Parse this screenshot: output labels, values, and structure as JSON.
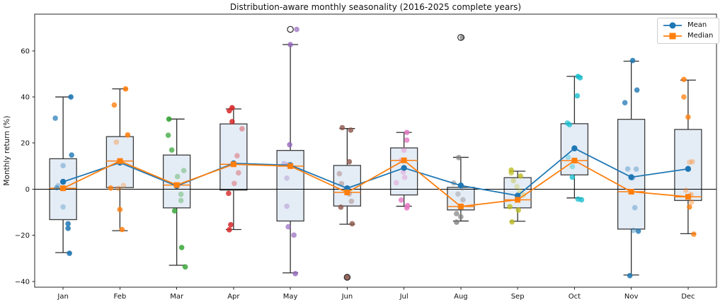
{
  "figure": {
    "title": "Distribution-aware monthly seasonality (2016-2025 complete years)",
    "ylabel": "Monthly return (%)"
  },
  "chart_data": {
    "type": "box+line+scatter",
    "title": "Distribution-aware monthly seasonality (2016-2025 complete years)",
    "xlabel": "",
    "ylabel": "Monthly return (%)",
    "categories": [
      "Jan",
      "Feb",
      "Mar",
      "Apr",
      "May",
      "Jun",
      "Jul",
      "Aug",
      "Sep",
      "Oct",
      "Nov",
      "Dec"
    ],
    "ylim": [
      -42.5,
      75.9
    ],
    "yticks": [
      -40,
      -20,
      0,
      20,
      40,
      60
    ],
    "grid": false,
    "zero_line": 0,
    "legend_position": "upper right",
    "style": {
      "box_fill": "#e4ecf6",
      "box_edge": "#3c3c3c",
      "whisker_color": "#2f2f2f",
      "box_median_color": "#ff7f0e",
      "axis_color": "#262626",
      "zero_line_color": "#000000",
      "flier_edge": "#2b2b2b"
    },
    "boxes": [
      {
        "label": "Jan",
        "whislo": -27.5,
        "q1": -13.2,
        "med": 0.4,
        "q3": 13.2,
        "whishi": 40.0,
        "fliers": []
      },
      {
        "label": "Feb",
        "whislo": -18.0,
        "q1": 0.7,
        "med": 12.2,
        "q3": 22.8,
        "whishi": 43.5,
        "fliers": []
      },
      {
        "label": "Mar",
        "whislo": -33.0,
        "q1": -8.1,
        "med": 1.8,
        "q3": 14.8,
        "whishi": 30.4,
        "fliers": []
      },
      {
        "label": "Apr",
        "whislo": -17.5,
        "q1": -0.4,
        "med": 10.8,
        "q3": 28.3,
        "whishi": 34.8,
        "fliers": []
      },
      {
        "label": "May",
        "whislo": -36.3,
        "q1": -13.8,
        "med": 10.0,
        "q3": 16.8,
        "whishi": 62.7,
        "fliers": [
          69.3
        ]
      },
      {
        "label": "Jun",
        "whislo": -15.2,
        "q1": -7.3,
        "med": -1.4,
        "q3": 10.3,
        "whishi": 26.3,
        "fliers": [
          -38.2
        ]
      },
      {
        "label": "Jul",
        "whislo": -7.4,
        "q1": -2.5,
        "med": 12.5,
        "q3": 17.9,
        "whishi": 24.6,
        "fliers": []
      },
      {
        "label": "Aug",
        "whislo": -13.8,
        "q1": -9.0,
        "med": -7.5,
        "q3": 0.8,
        "whishi": 13.8,
        "fliers": [
          65.8
        ]
      },
      {
        "label": "Sep",
        "whislo": -13.9,
        "q1": -8.1,
        "med": -4.6,
        "q3": 5.0,
        "whishi": 7.8,
        "fliers": []
      },
      {
        "label": "Oct",
        "whislo": -3.8,
        "q1": 6.2,
        "med": 12.4,
        "q3": 28.4,
        "whishi": 48.9,
        "fliers": []
      },
      {
        "label": "Nov",
        "whislo": -37.2,
        "q1": -17.3,
        "med": -1.1,
        "q3": 30.3,
        "whishi": 55.5,
        "fliers": []
      },
      {
        "label": "Dec",
        "whislo": -19.3,
        "q1": -4.9,
        "med": -3.3,
        "q3": 25.9,
        "whishi": 47.3,
        "fliers": []
      }
    ],
    "series": [
      {
        "name": "Mean",
        "color": "#1f77b4",
        "marker": "circle",
        "values": [
          3.2,
          11.5,
          1.4,
          11.2,
          10.4,
          0.4,
          9.2,
          1.6,
          -2.8,
          17.7,
          5.2,
          8.8
        ]
      },
      {
        "name": "Median",
        "color": "#ff7f0e",
        "marker": "square",
        "values": [
          0.4,
          12.2,
          1.8,
          10.8,
          10.0,
          -1.4,
          12.5,
          -7.5,
          -4.6,
          12.4,
          -1.1,
          -3.3
        ]
      }
    ],
    "scatter": [
      {
        "month": "Jan",
        "color": "#1f77b4",
        "points": [
          [
            40,
            11,
            0.9
          ],
          [
            30.8,
            -11,
            0.7
          ],
          [
            14.8,
            12,
            0.8
          ],
          [
            10.2,
            0,
            0.35
          ],
          [
            1.5,
            -7,
            0.3
          ],
          [
            0.6,
            -9,
            0.5
          ],
          [
            -7.7,
            0,
            0.3
          ],
          [
            -15,
            7,
            0.85
          ],
          [
            -17,
            7,
            0.85
          ],
          [
            -27.8,
            9,
            0.9
          ]
        ]
      },
      {
        "month": "Feb",
        "color": "#ff7f0e",
        "points": [
          [
            43.5,
            8,
            0.9
          ],
          [
            36.5,
            -8,
            0.8
          ],
          [
            23.5,
            11,
            0.9
          ],
          [
            20.4,
            -5,
            0.35
          ],
          [
            12.3,
            1,
            0.8
          ],
          [
            1.6,
            5,
            0.3
          ],
          [
            0.5,
            -13,
            0.8
          ],
          [
            0.3,
            -2,
            0.4
          ],
          [
            -8.8,
            0,
            0.85
          ],
          [
            -17.5,
            3,
            0.85
          ]
        ]
      },
      {
        "month": "Mar",
        "color": "#2ca02c",
        "points": [
          [
            30.4,
            -11,
            0.85
          ],
          [
            23.4,
            -12,
            0.7
          ],
          [
            17,
            -7,
            0.7
          ],
          [
            8.1,
            10,
            0.35
          ],
          [
            5.5,
            1,
            0.35
          ],
          [
            -2.2,
            6,
            0.35
          ],
          [
            -4.9,
            6,
            0.35
          ],
          [
            -9.4,
            -3,
            0.8
          ],
          [
            -25.3,
            7,
            0.8
          ],
          [
            -33.7,
            12,
            0.8
          ]
        ]
      },
      {
        "month": "Apr",
        "color": "#d62728",
        "points": [
          [
            35.3,
            -2,
            0.9
          ],
          [
            34,
            -6,
            0.85
          ],
          [
            29.3,
            -2,
            0.85
          ],
          [
            26.2,
            12,
            0.4
          ],
          [
            14.5,
            5,
            0.35
          ],
          [
            7.1,
            7,
            0.35
          ],
          [
            2.5,
            1,
            0.35
          ],
          [
            -1.8,
            -7,
            0.8
          ],
          [
            -15.4,
            -4,
            0.85
          ],
          [
            -17.6,
            -6,
            0.85
          ]
        ]
      },
      {
        "month": "May",
        "color": "#9467bd",
        "points": [
          [
            69.3,
            9,
            0.7
          ],
          [
            62.7,
            0,
            0.8
          ],
          [
            19.3,
            -1,
            0.8
          ],
          [
            11,
            -9,
            0.35
          ],
          [
            10.6,
            -3,
            0.35
          ],
          [
            4.8,
            -5,
            0.3
          ],
          [
            -7.4,
            -5,
            0.35
          ],
          [
            -16.3,
            -3,
            0.7
          ],
          [
            -19.9,
            5,
            0.7
          ],
          [
            -36.6,
            7,
            0.8
          ]
        ]
      },
      {
        "month": "Jun",
        "color": "#8c564b",
        "points": [
          [
            26.7,
            -7,
            0.8
          ],
          [
            25.6,
            5,
            0.8
          ],
          [
            11.9,
            3,
            0.8
          ],
          [
            6.7,
            -11,
            0.35
          ],
          [
            2.4,
            -8,
            0.35
          ],
          [
            -2.1,
            3,
            0.3
          ],
          [
            -5.2,
            6,
            0.35
          ],
          [
            -7.8,
            -9,
            0.8
          ],
          [
            -15,
            7,
            0.8
          ],
          [
            -38.2,
            0,
            0.9
          ]
        ]
      },
      {
        "month": "Jul",
        "color": "#e377c2",
        "points": [
          [
            24.6,
            4,
            0.85
          ],
          [
            21.3,
            4,
            0.8
          ],
          [
            16.9,
            0,
            0.4
          ],
          [
            12.6,
            -4,
            0.35
          ],
          [
            7.4,
            -1,
            0.35
          ],
          [
            5.1,
            1,
            0.35
          ],
          [
            2.8,
            -11,
            0.35
          ],
          [
            -4.7,
            -4,
            0.8
          ],
          [
            -7.1,
            5,
            0.85
          ],
          [
            -8.1,
            4,
            0.85
          ]
        ]
      },
      {
        "month": "Aug",
        "color": "#7f7f7f",
        "points": [
          [
            65.8,
            2,
            0.75
          ],
          [
            13.7,
            -3,
            0.7
          ],
          [
            2.7,
            -10,
            0.5
          ],
          [
            0.5,
            2,
            0.35
          ],
          [
            -2.1,
            -4,
            0.35
          ],
          [
            -4.6,
            3,
            0.4
          ],
          [
            -7.6,
            -1,
            0.4
          ],
          [
            -10.6,
            -6,
            0.7
          ],
          [
            -12,
            0,
            0.7
          ],
          [
            -14.3,
            -6,
            0.8
          ]
        ]
      },
      {
        "month": "Sep",
        "color": "#bcbd22",
        "points": [
          [
            8.3,
            -9,
            0.8
          ],
          [
            7.1,
            -9,
            0.7
          ],
          [
            5.7,
            4,
            0.8
          ],
          [
            3.7,
            -6,
            0.4
          ],
          [
            1.2,
            -1,
            0.3
          ],
          [
            -0.8,
            3,
            0.3
          ],
          [
            -2.5,
            8,
            0.35
          ],
          [
            -7.6,
            -11,
            0.8
          ],
          [
            -9.1,
            1,
            0.8
          ],
          [
            -14.2,
            -8,
            0.8
          ]
        ]
      },
      {
        "month": "Oct",
        "color": "#17becf",
        "points": [
          [
            48.9,
            5,
            0.85
          ],
          [
            48.3,
            8,
            0.8
          ],
          [
            40.5,
            4,
            0.8
          ],
          [
            28.7,
            -10,
            0.7
          ],
          [
            28,
            -7,
            0.75
          ],
          [
            13.9,
            -9,
            0.35
          ],
          [
            9.8,
            -3,
            0.4
          ],
          [
            5.2,
            -3,
            0.8
          ],
          [
            -4.3,
            5,
            0.75
          ],
          [
            -4.6,
            10,
            0.8
          ]
        ]
      },
      {
        "month": "Nov",
        "color": "#1f77b4",
        "points": [
          [
            55.8,
            2,
            0.85
          ],
          [
            43,
            8,
            0.8
          ],
          [
            37.5,
            -9,
            0.75
          ],
          [
            8.8,
            -5,
            0.35
          ],
          [
            8.7,
            7,
            0.35
          ],
          [
            4.9,
            2,
            0.3
          ],
          [
            -8,
            5,
            0.35
          ],
          [
            -17.9,
            3,
            0.4
          ],
          [
            -18.2,
            10,
            0.8
          ],
          [
            -37.5,
            -2,
            0.85
          ]
        ]
      },
      {
        "month": "Dec",
        "color": "#ff7f0e",
        "points": [
          [
            47.6,
            -6,
            0.85
          ],
          [
            40,
            -6,
            0.75
          ],
          [
            31.3,
            0,
            0.8
          ],
          [
            11.9,
            6,
            0.35
          ],
          [
            11.7,
            2,
            0.3
          ],
          [
            -0.5,
            -3,
            0.35
          ],
          [
            -2.3,
            4,
            0.4
          ],
          [
            -5.6,
            5,
            0.4
          ],
          [
            -7.7,
            2,
            0.8
          ],
          [
            -19.5,
            8,
            0.8
          ]
        ]
      }
    ]
  }
}
